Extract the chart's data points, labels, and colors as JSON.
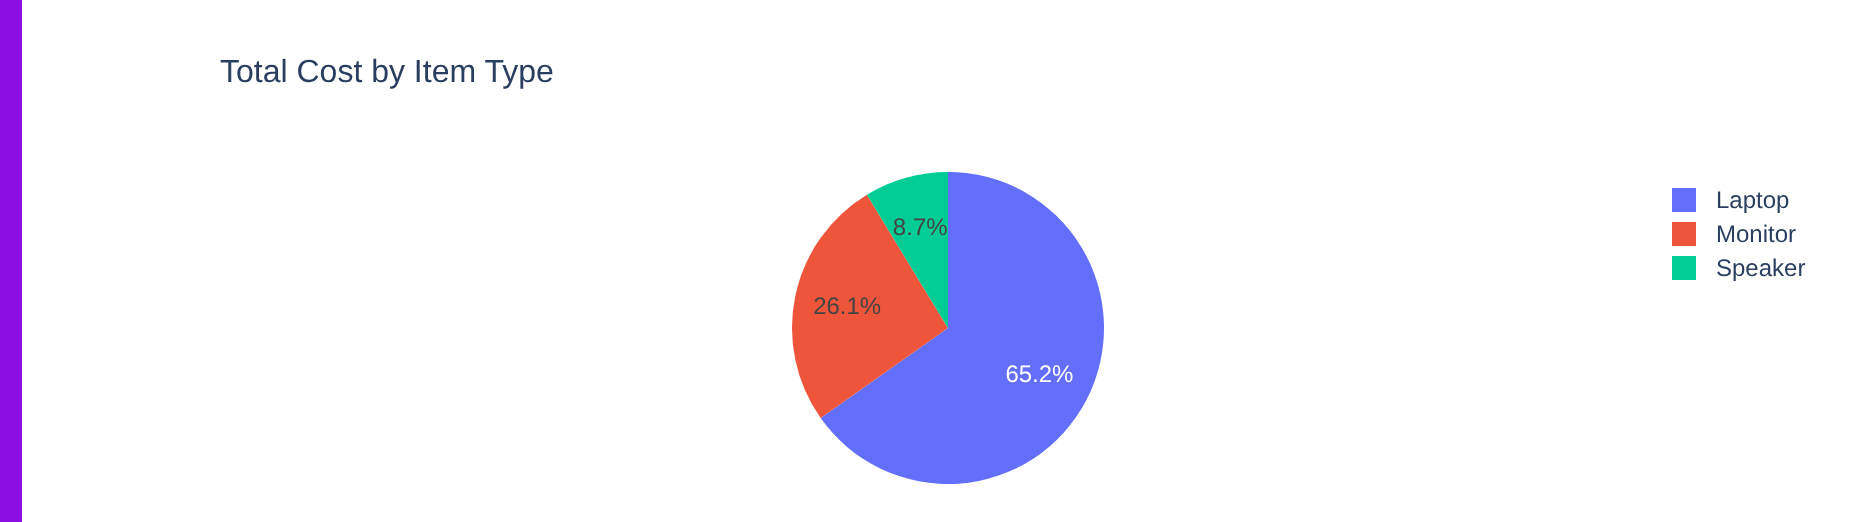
{
  "chart_data": {
    "type": "pie",
    "title": "Total Cost by Item Type",
    "categories": [
      "Laptop",
      "Monitor",
      "Speaker"
    ],
    "values": [
      65.2,
      26.1,
      8.7
    ],
    "colors": [
      "#636efa",
      "#ef553b",
      "#00cc96"
    ],
    "value_labels": [
      "65.2%",
      "26.1%",
      "8.7%"
    ],
    "legend": "top right"
  }
}
